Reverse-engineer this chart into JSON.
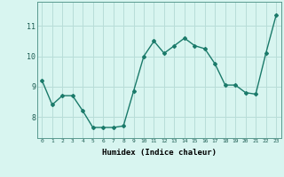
{
  "x": [
    0,
    1,
    2,
    3,
    4,
    5,
    6,
    7,
    8,
    9,
    10,
    11,
    12,
    13,
    14,
    15,
    16,
    17,
    18,
    19,
    20,
    21,
    22,
    23
  ],
  "y": [
    9.2,
    8.4,
    8.7,
    8.7,
    8.2,
    7.65,
    7.65,
    7.65,
    7.7,
    8.85,
    10.0,
    10.5,
    10.1,
    10.35,
    10.6,
    10.35,
    10.25,
    9.75,
    9.05,
    9.05,
    8.8,
    8.75,
    10.1,
    11.35
  ],
  "line_color": "#1a7a6a",
  "marker": "D",
  "markersize": 2.0,
  "linewidth": 1.0,
  "xlabel": "Humidex (Indice chaleur)",
  "xlabel_fontsize": 6.5,
  "bg_color": "#d8f5f0",
  "grid_color": "#b8ddd8",
  "yticks": [
    8,
    9,
    10,
    11
  ],
  "ylim": [
    7.3,
    11.8
  ],
  "xlim": [
    -0.5,
    23.5
  ],
  "xtick_labels": [
    "0",
    "1",
    "2",
    "3",
    "4",
    "5",
    "6",
    "7",
    "8",
    "9",
    "10",
    "11",
    "12",
    "13",
    "14",
    "15",
    "16",
    "17",
    "18",
    "19",
    "20",
    "21",
    "22",
    "23"
  ]
}
